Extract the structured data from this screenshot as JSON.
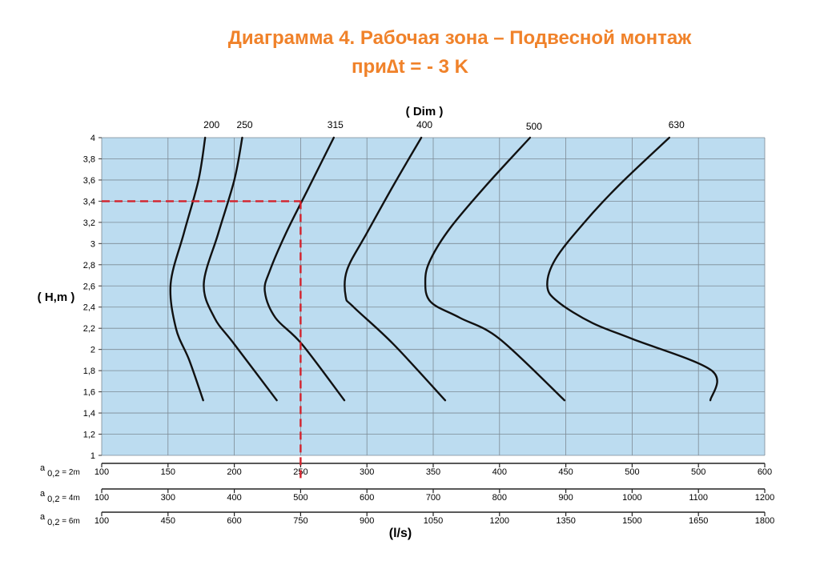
{
  "title": {
    "line1": "Диаграмма 4. Рабочая зона – Подвесной монтаж",
    "line2": "при∆t = - 3 K"
  },
  "chart_data": {
    "type": "line",
    "xlabel_top": "( Dim )",
    "ylabel": "( H,m )",
    "xlabel_bottom": "(l/s)",
    "ylim": [
      1,
      4
    ],
    "y_ticks": [
      "1",
      "1,2",
      "1,4",
      "1,6",
      "1,8",
      "2",
      "2,2",
      "2,4",
      "2,6",
      "2,8",
      "3",
      "3,2",
      "3,4",
      "3,6",
      "3,8",
      "4"
    ],
    "x_axes": [
      {
        "label": "a 0,2 = 2m",
        "range": [
          100,
          600
        ],
        "tick_labels": [
          "100",
          "150",
          "200",
          "250",
          "300",
          "350",
          "400",
          "450",
          "500",
          "500",
          "600"
        ]
      },
      {
        "label": "a 0,2 = 4m",
        "range": [
          100,
          1200
        ],
        "tick_labels": [
          "100",
          "300",
          "400",
          "500",
          "600",
          "700",
          "800",
          "900",
          "1000",
          "1100",
          "1200"
        ]
      },
      {
        "label": "a 0,2 = 6m",
        "range": [
          100,
          1800
        ],
        "tick_labels": [
          "100",
          "450",
          "600",
          "750",
          "900",
          "1050",
          "1200",
          "1350",
          "1500",
          "1650",
          "1800"
        ]
      }
    ],
    "series": [
      {
        "name": "200",
        "points": [
          [
            178.0,
            4.0
          ],
          [
            173.0,
            3.6
          ],
          [
            162.0,
            3.1
          ],
          [
            152.0,
            2.62
          ],
          [
            156.0,
            2.2
          ],
          [
            166.0,
            1.9
          ],
          [
            176.5,
            1.52
          ]
        ]
      },
      {
        "name": "250",
        "points": [
          [
            206.0,
            4.0
          ],
          [
            200.0,
            3.6
          ],
          [
            188.0,
            3.1
          ],
          [
            177.0,
            2.62
          ],
          [
            185.0,
            2.3
          ],
          [
            200.0,
            2.05
          ],
          [
            232.0,
            1.52
          ]
        ]
      },
      {
        "name": "315",
        "points": [
          [
            275.0,
            4.0
          ],
          [
            255.0,
            3.5
          ],
          [
            239.0,
            3.1
          ],
          [
            227.0,
            2.75
          ],
          [
            223.0,
            2.55
          ],
          [
            231.0,
            2.3
          ],
          [
            251.0,
            2.05
          ],
          [
            283.0,
            1.52
          ]
        ]
      },
      {
        "name": "400",
        "points": [
          [
            341.0,
            4.0
          ],
          [
            320.0,
            3.55
          ],
          [
            300.0,
            3.1
          ],
          [
            285.0,
            2.75
          ],
          [
            284.0,
            2.5
          ],
          [
            290.0,
            2.4
          ],
          [
            320.0,
            2.05
          ],
          [
            359.0,
            1.52
          ]
        ]
      },
      {
        "name": "500",
        "points": [
          [
            423.0,
            4.0
          ],
          [
            390.0,
            3.55
          ],
          [
            363.0,
            3.15
          ],
          [
            348.0,
            2.85
          ],
          [
            344.0,
            2.65
          ],
          [
            348.0,
            2.45
          ],
          [
            370.0,
            2.3
          ],
          [
            400.0,
            2.1
          ],
          [
            449.0,
            1.52
          ]
        ]
      },
      {
        "name": "630",
        "points": [
          [
            528.0,
            4.0
          ],
          [
            490.0,
            3.55
          ],
          [
            464.0,
            3.2
          ],
          [
            442.0,
            2.85
          ],
          [
            436.0,
            2.6
          ],
          [
            444.0,
            2.45
          ],
          [
            470.0,
            2.25
          ],
          [
            500.0,
            2.1
          ],
          [
            560.0,
            1.8
          ],
          [
            559.0,
            1.52
          ]
        ]
      }
    ],
    "reference_point": {
      "x": 250,
      "y": 3.4
    },
    "grid": true,
    "colors": {
      "plot_background": "#bcdcf0",
      "grid": "#7d8a94",
      "curve": "#111111",
      "reference": "#d4212b",
      "title": "#f0822a"
    }
  }
}
